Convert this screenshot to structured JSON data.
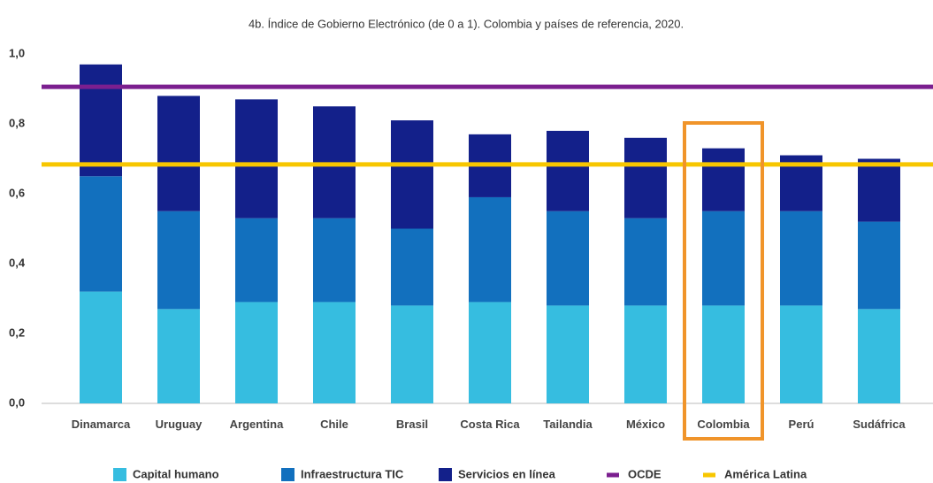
{
  "chart_data": {
    "type": "stacked_bar",
    "title": "4b. Índice de Gobierno Electrónico (de 0 a 1). Colombia y países de referencia, 2020.",
    "categories": [
      "Dinamarca",
      "Uruguay",
      "Argentina",
      "Chile",
      "Brasil",
      "Costa Rica",
      "Tailandia",
      "México",
      "Colombia",
      "Perú",
      "Sudáfrica"
    ],
    "series": [
      {
        "name": "Capital humano",
        "color": "#36bde0",
        "values": [
          0.32,
          0.27,
          0.29,
          0.29,
          0.28,
          0.29,
          0.28,
          0.28,
          0.28,
          0.28,
          0.27
        ]
      },
      {
        "name": "Infraestructura TIC",
        "color": "#1270be",
        "values": [
          0.33,
          0.28,
          0.24,
          0.24,
          0.22,
          0.3,
          0.27,
          0.25,
          0.27,
          0.27,
          0.25
        ]
      },
      {
        "name": "Servicios en línea",
        "color": "#13208a",
        "values": [
          0.32,
          0.33,
          0.34,
          0.32,
          0.31,
          0.18,
          0.23,
          0.23,
          0.18,
          0.16,
          0.18
        ]
      }
    ],
    "reference_lines": [
      {
        "name": "OCDE",
        "color": "#7b1f8f",
        "value": 0.906
      },
      {
        "name": "América Latina",
        "color": "#f7c600",
        "value": 0.684
      }
    ],
    "highlight": {
      "category_index": 8,
      "color": "#f0942a"
    },
    "ylim": [
      0,
      1
    ],
    "yticks": [
      {
        "value": 0,
        "label": "0,0"
      },
      {
        "value": 0.2,
        "label": "0,2"
      },
      {
        "value": 0.4,
        "label": "0,4"
      },
      {
        "value": 0.6,
        "label": "0,6"
      },
      {
        "value": 0.8,
        "label": "0,8"
      },
      {
        "value": 1,
        "label": "1,0"
      }
    ],
    "grid": false
  }
}
